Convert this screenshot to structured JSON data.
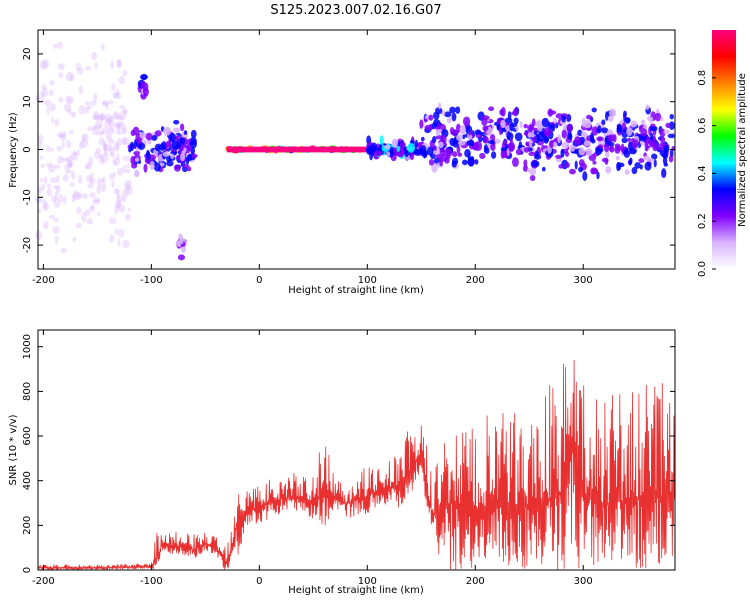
{
  "title": "S125.2023.007.02.16.G07",
  "chart_data": [
    {
      "type": "heatmap",
      "xlabel": "Height of straight line (km)",
      "ylabel": "Frequency (Hz)",
      "xlim": [
        -205,
        385
      ],
      "ylim": [
        -25,
        25
      ],
      "x_ticks": [
        -200,
        -100,
        0,
        100,
        200,
        300
      ],
      "x_tick_labels": [
        "-200",
        "-100",
        "0",
        "100",
        "200",
        "300"
      ],
      "y_ticks": [
        20,
        10,
        0,
        -10,
        -20
      ],
      "y_tick_labels": [
        "20",
        "10",
        "0",
        "-10",
        "-20"
      ],
      "colorbar": {
        "label": "Normalized spectral amplitude",
        "range": [
          0,
          1
        ],
        "ticks": [
          0.0,
          0.2,
          0.4,
          0.6,
          0.8
        ],
        "tick_labels": [
          "0.0",
          "0.2",
          "0.4",
          "0.6",
          "0.8"
        ],
        "colormap": [
          "#ffffff",
          "#d9b3ff",
          "#8000ff",
          "#0000ff",
          "#00ffff",
          "#00ff00",
          "#ffff00",
          "#ff8000",
          "#ff0000",
          "#ff0080"
        ]
      },
      "features": [
        {
          "x": [
            -205,
            -120
          ],
          "freq_center": 0,
          "freq_spread": 25,
          "amplitude": 0.15
        },
        {
          "x": [
            -120,
            -60
          ],
          "freq_center": 0,
          "freq_spread": 6,
          "amplitude": 0.35
        },
        {
          "x": [
            -110,
            -105
          ],
          "freq_center": 13,
          "freq_spread": 3,
          "amplitude": 0.3
        },
        {
          "x": [
            -75,
            -70
          ],
          "freq_center": -20,
          "freq_spread": 3,
          "amplitude": 0.2
        },
        {
          "x": [
            -30,
            100
          ],
          "freq_center": 0,
          "freq_spread": 0.6,
          "amplitude": 0.95
        },
        {
          "x": [
            100,
            150
          ],
          "freq_center": 0,
          "freq_spread": 2,
          "amplitude": 0.4
        },
        {
          "x": [
            150,
            385
          ],
          "freq_center": 2,
          "freq_spread": 8,
          "amplitude": 0.35
        }
      ],
      "grid": false
    },
    {
      "type": "line",
      "xlabel": "Height of straight line (km)",
      "ylabel": "SNR (10 * v/v)",
      "xlim": [
        -205,
        385
      ],
      "ylim": [
        0,
        1075
      ],
      "x_ticks": [
        -200,
        -100,
        0,
        100,
        200,
        300
      ],
      "x_tick_labels": [
        "-200",
        "-100",
        "0",
        "100",
        "200",
        "300"
      ],
      "y_ticks": [
        0,
        200,
        400,
        600,
        800,
        1000
      ],
      "y_tick_labels": [
        "0",
        "200",
        "400",
        "600",
        "800",
        "1000"
      ],
      "color": "#e83030",
      "x": [
        -205,
        -150,
        -100,
        -95,
        -90,
        -80,
        -70,
        -60,
        -50,
        -40,
        -30,
        -25,
        -20,
        -10,
        0,
        10,
        20,
        30,
        40,
        50,
        60,
        70,
        80,
        90,
        100,
        110,
        120,
        130,
        140,
        150,
        155,
        160,
        170,
        180,
        200,
        220,
        240,
        260,
        280,
        288,
        300,
        320,
        340,
        360,
        380,
        385
      ],
      "y": [
        10,
        10,
        15,
        50,
        120,
        110,
        100,
        90,
        120,
        100,
        30,
        120,
        230,
        270,
        280,
        300,
        320,
        330,
        320,
        310,
        340,
        330,
        300,
        320,
        330,
        360,
        370,
        380,
        450,
        520,
        380,
        250,
        280,
        300,
        270,
        280,
        290,
        300,
        350,
        600,
        330,
        300,
        310,
        320,
        340,
        330
      ],
      "envelope_upper": [
        25,
        25,
        30,
        180,
        170,
        180,
        170,
        160,
        180,
        150,
        130,
        250,
        530,
        380,
        400,
        420,
        430,
        440,
        420,
        460,
        590,
        430,
        420,
        450,
        460,
        480,
        500,
        560,
        650,
        660,
        560,
        520,
        580,
        640,
        670,
        720,
        700,
        810,
        920,
        1070,
        830,
        850,
        810,
        840,
        840,
        660
      ],
      "grid": false
    }
  ]
}
